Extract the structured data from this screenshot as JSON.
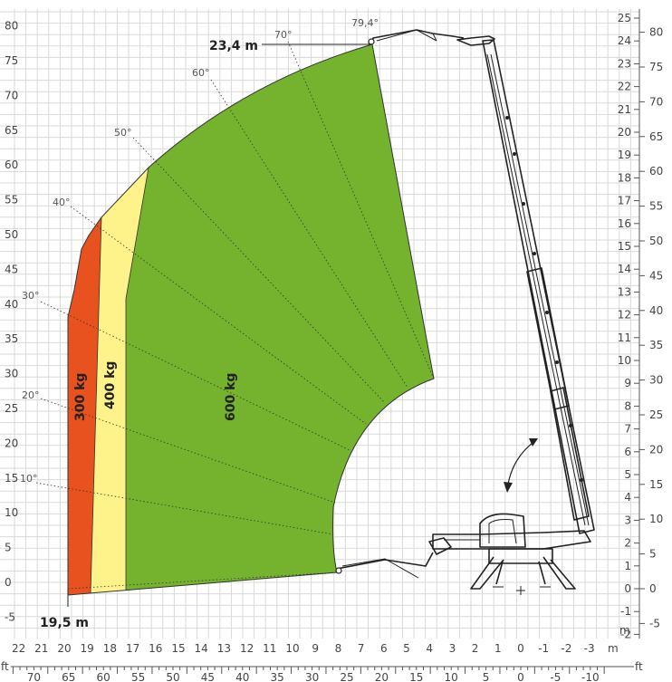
{
  "max_height_label": "23,4 m",
  "max_outreach_label": "19,5 m",
  "max_angle_label": "79,4°",
  "angle_labels": [
    "10°",
    "20°",
    "30°",
    "40°",
    "50°",
    "60°",
    "70°"
  ],
  "zones": [
    {
      "label": "300 kg",
      "color": "#e8521e"
    },
    {
      "label": "400 kg",
      "color": "#fef38a"
    },
    {
      "label": "600 kg",
      "color": "#75b22e"
    }
  ],
  "axes": {
    "left_ft": [
      "80",
      "75",
      "70",
      "65",
      "60",
      "55",
      "50",
      "45",
      "40",
      "35",
      "30",
      "25",
      "20",
      "15",
      "10",
      "5",
      "0",
      "-5"
    ],
    "right_m": [
      "25",
      "24",
      "23",
      "22",
      "21",
      "20",
      "19",
      "18",
      "17",
      "16",
      "15",
      "14",
      "13",
      "12",
      "11",
      "10",
      "9",
      "8",
      "7",
      "6",
      "5",
      "4",
      "3",
      "2",
      "1",
      "0",
      "-1",
      "-2"
    ],
    "right_ft": [
      "80",
      "75",
      "70",
      "65",
      "60",
      "55",
      "50",
      "45",
      "40",
      "35",
      "30",
      "25",
      "20",
      "15",
      "10",
      "5",
      "0",
      "-5"
    ],
    "bottom_m": [
      "22",
      "21",
      "20",
      "19",
      "18",
      "17",
      "16",
      "15",
      "14",
      "13",
      "12",
      "11",
      "10",
      "9",
      "8",
      "7",
      "6",
      "5",
      "4",
      "3",
      "2",
      "1",
      "0",
      "-1",
      "-2",
      "-3"
    ],
    "bottom_ft": [
      "70",
      "65",
      "60",
      "55",
      "50",
      "45",
      "40",
      "35",
      "30",
      "25",
      "20",
      "15",
      "10",
      "5",
      "0",
      "-5",
      "-10"
    ],
    "unit_m_bottom": "m",
    "unit_m_right": "m",
    "unit_ft_bottom": "ft",
    "unit_ft_left": "ft"
  }
}
